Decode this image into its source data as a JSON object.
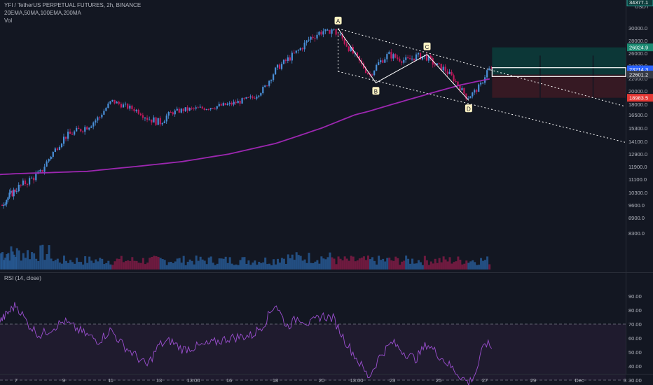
{
  "header": {
    "title": "YFI / TetherUS PERPETUAL FUTURES, 2h, BINANCE",
    "indicators": "20EMA,50MA,100EMA,200MA",
    "vol_label": "Vol",
    "rsi_label": "RSI (14, close)"
  },
  "price_axis": {
    "currency": "USDT",
    "ticks": [
      "30000.0",
      "28000.0",
      "26000.0",
      "24000.0",
      "22000.0",
      "20000.0",
      "18000.0",
      "16500.0",
      "15300.0",
      "14100.0",
      "12900.0",
      "11900.0",
      "11100.0",
      "10300.0",
      "9600.0",
      "8900.0",
      "8300.0"
    ]
  },
  "rsi_axis": {
    "ticks": [
      "90.00",
      "80.00",
      "70.00",
      "60.00",
      "50.00",
      "40.00",
      "30.00"
    ]
  },
  "time_axis": {
    "labels": [
      "7",
      "9",
      "11",
      "13",
      "13:00",
      "16",
      "18",
      "20",
      "13:00",
      "23",
      "25",
      "27",
      "29",
      "Dec",
      "3"
    ]
  },
  "badges": {
    "top": "34377.1",
    "target": "26924.9",
    "current": "23214.3",
    "entry": "22601.2",
    "stop": "18983.5"
  },
  "points": [
    "A",
    "B",
    "C",
    "D"
  ],
  "colors": {
    "background": "#131722",
    "up": "#4a90d9",
    "down": "#c2185b",
    "ma200": "#9c27b0",
    "profit": "#0c3b3a",
    "loss": "#3b1a24",
    "rsi": "#9c4fd1"
  },
  "chart_data": {
    "type": "candlestick",
    "symbol": "YFI / TetherUS PERPETUAL FUTURES",
    "timeframe": "2h",
    "price_ticks": [
      30000,
      28000,
      26000,
      24000,
      22000,
      20000,
      18000,
      16500,
      15300,
      14100,
      12900,
      11900,
      11100,
      10300,
      9600,
      8900,
      8300
    ],
    "price_path": [
      [
        6,
        9600
      ],
      [
        8,
        11500
      ],
      [
        8.5,
        13000
      ],
      [
        9,
        14500
      ],
      [
        10,
        15500
      ],
      [
        10.5,
        16300
      ],
      [
        11,
        18500
      ],
      [
        11.5,
        17800
      ],
      [
        12,
        17200
      ],
      [
        12.5,
        16200
      ],
      [
        13,
        15800
      ],
      [
        13.5,
        16800
      ],
      [
        14,
        17200
      ],
      [
        15,
        17500
      ],
      [
        16,
        18000
      ],
      [
        16.5,
        18500
      ],
      [
        17,
        19000
      ],
      [
        17.5,
        20500
      ],
      [
        18,
        23500
      ],
      [
        18.5,
        25000
      ],
      [
        19,
        26500
      ],
      [
        19.5,
        28500
      ],
      [
        20,
        29500
      ],
      [
        20.4,
        29800
      ],
      [
        20.8,
        28500
      ],
      [
        21.2,
        26500
      ],
      [
        21.6,
        24500
      ],
      [
        22,
        22500
      ],
      [
        22.4,
        24500
      ],
      [
        22.8,
        25800
      ],
      [
        23.2,
        25200
      ],
      [
        23.6,
        24800
      ],
      [
        24,
        25500
      ],
      [
        24.4,
        25500
      ],
      [
        24.8,
        24200
      ],
      [
        25.2,
        23500
      ],
      [
        25.6,
        22000
      ],
      [
        25.9,
        20500
      ],
      [
        26.2,
        19000
      ],
      [
        26.5,
        19800
      ],
      [
        26.8,
        21000
      ],
      [
        27.1,
        23500
      ],
      [
        27.3,
        23214
      ]
    ],
    "ma200_path": [
      [
        6,
        11400
      ],
      [
        8,
        11500
      ],
      [
        10,
        11600
      ],
      [
        12,
        11900
      ],
      [
        14,
        12300
      ],
      [
        16,
        12900
      ],
      [
        18,
        13900
      ],
      [
        20,
        15300
      ],
      [
        22,
        17000
      ],
      [
        24,
        19000
      ],
      [
        25,
        20000
      ],
      [
        26,
        21000
      ],
      [
        27.3,
        22000
      ]
    ],
    "abcd": [
      {
        "label": "A",
        "date": 20.7,
        "price": 29900
      },
      {
        "label": "B",
        "date": 22.3,
        "price": 21300
      },
      {
        "label": "C",
        "date": 24.5,
        "price": 25800
      },
      {
        "label": "D",
        "date": 26.3,
        "price": 18600
      }
    ],
    "position": {
      "entry": 22601.2,
      "target": 26924.9,
      "stop": 18983.5,
      "top": 34377.1
    },
    "rsi_ticks": [
      90,
      80,
      70,
      60,
      50,
      40,
      30
    ],
    "rsi_bands": [
      30,
      70
    ],
    "rsi_path": [
      [
        6,
        72
      ],
      [
        7,
        84
      ],
      [
        7.5,
        70
      ],
      [
        8,
        62
      ],
      [
        9,
        72
      ],
      [
        10,
        62
      ],
      [
        10.5,
        58
      ],
      [
        11,
        66
      ],
      [
        11.5,
        55
      ],
      [
        12,
        48
      ],
      [
        12.5,
        40
      ],
      [
        13,
        55
      ],
      [
        13.5,
        58
      ],
      [
        14,
        52
      ],
      [
        15,
        55
      ],
      [
        16,
        60
      ],
      [
        17,
        62
      ],
      [
        17.5,
        70
      ],
      [
        18,
        85
      ],
      [
        18.5,
        68
      ],
      [
        19,
        75
      ],
      [
        19.5,
        70
      ],
      [
        20,
        76
      ],
      [
        20.5,
        74
      ],
      [
        21,
        58
      ],
      [
        21.5,
        45
      ],
      [
        22,
        32
      ],
      [
        22.5,
        48
      ],
      [
        23,
        57
      ],
      [
        23.5,
        50
      ],
      [
        24,
        45
      ],
      [
        24.5,
        56
      ],
      [
        25,
        48
      ],
      [
        25.5,
        40
      ],
      [
        26,
        32
      ],
      [
        26.3,
        28
      ],
      [
        26.6,
        35
      ],
      [
        27,
        57
      ],
      [
        27.3,
        53
      ]
    ]
  }
}
